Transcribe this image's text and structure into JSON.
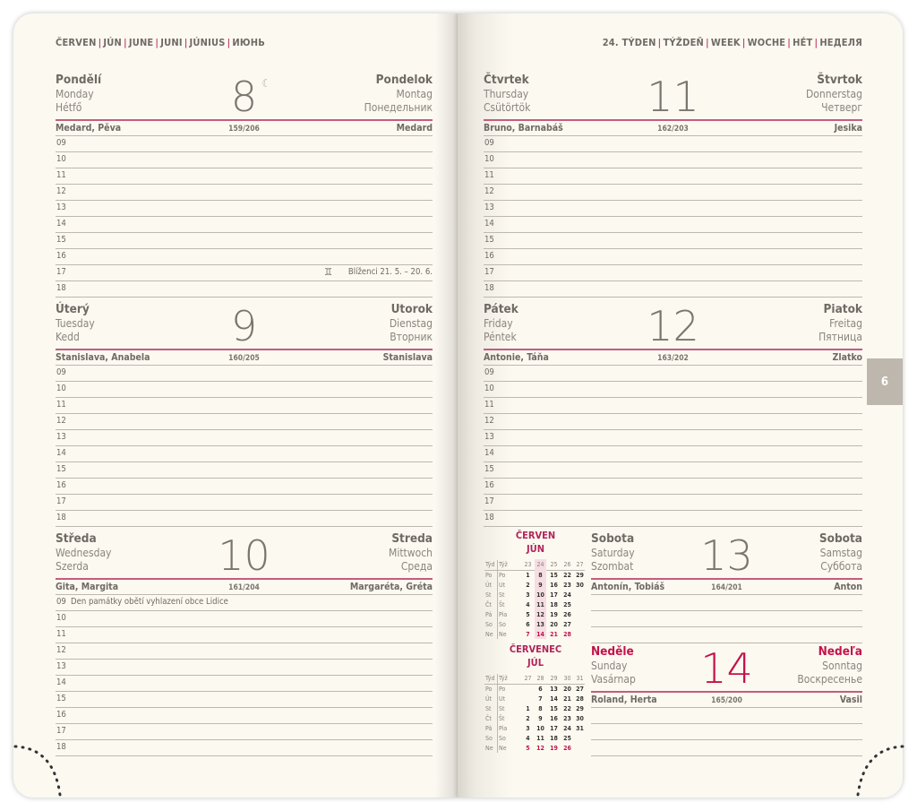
{
  "left_header": [
    "ČERVEN",
    "JÚN",
    "JUNE",
    "JUNI",
    "JÚNIUS",
    "ИЮНЬ"
  ],
  "right_header": [
    "24. TÝDEN",
    "TÝŽDEŇ",
    "WEEK",
    "WOCHE",
    "HÉT",
    "НЕДЕЛЯ"
  ],
  "colors": {
    "accent": "#c45c7e",
    "sunday": "#c2124b",
    "paper": "#fcf9f1",
    "text": "#6f6a64",
    "tab": "#bdb7ad"
  },
  "month_tab": "6",
  "hours": [
    "09",
    "10",
    "11",
    "12",
    "13",
    "14",
    "15",
    "16",
    "17",
    "18"
  ],
  "days": [
    {
      "cz": "Pondělí",
      "en": "Monday",
      "hu": "Hétfő",
      "sk": "Pondelok",
      "de": "Montag",
      "ru": "Понедельник",
      "num": "8",
      "moon_icon": "crescent-moon-icon",
      "moon": "☾",
      "names_cz": "Medard, Pěva",
      "count": "159/206",
      "names_sk": "Medard",
      "notes": {
        "17": {
          "icon": "gemini-icon",
          "glyph": "♊",
          "text": "Blíženci 21. 5. – 20. 6."
        }
      }
    },
    {
      "cz": "Úterý",
      "en": "Tuesday",
      "hu": "Kedd",
      "sk": "Utorok",
      "de": "Dienstag",
      "ru": "Вторник",
      "num": "9",
      "names_cz": "Stanislava, Anabela",
      "count": "160/205",
      "names_sk": "Stanislava"
    },
    {
      "cz": "Středa",
      "en": "Wednesday",
      "hu": "Szerda",
      "sk": "Streda",
      "de": "Mittwoch",
      "ru": "Среда",
      "num": "10",
      "names_cz": "Gita, Margita",
      "count": "161/204",
      "names_sk": "Margaréta, Gréta",
      "notes": {
        "09": {
          "text": "Den památky obětí vyhlazení obce Lidice",
          "inline": true
        }
      }
    },
    {
      "cz": "Čtvrtek",
      "en": "Thursday",
      "hu": "Csütörtök",
      "sk": "Štvrtok",
      "de": "Donnerstag",
      "ru": "Четверг",
      "num": "11",
      "names_cz": "Bruno, Barnabáš",
      "count": "162/203",
      "names_sk": "Jesika"
    },
    {
      "cz": "Pátek",
      "en": "Friday",
      "hu": "Péntek",
      "sk": "Piatok",
      "de": "Freitag",
      "ru": "Пятница",
      "num": "12",
      "names_cz": "Antonie, Táňa",
      "count": "163/202",
      "names_sk": "Zlatko"
    },
    {
      "cz": "Sobota",
      "en": "Saturday",
      "hu": "Szombat",
      "sk": "Sobota",
      "de": "Samstag",
      "ru": "Суббота",
      "num": "13",
      "names_cz": "Antonín, Tobiáš",
      "count": "164/201",
      "names_sk": "Anton"
    },
    {
      "cz": "Neděle",
      "en": "Sunday",
      "hu": "Vasárnap",
      "sk": "Nedeľa",
      "de": "Sonntag",
      "ru": "Воскресенье",
      "num": "14",
      "names_cz": "Roland, Herta",
      "count": "165/200",
      "names_sk": "Vasil",
      "sunday": true
    }
  ],
  "mini_calendars": [
    {
      "title_cz": "ČERVEN",
      "title_sk": "JÚN",
      "head_cz": "Týd",
      "head_sk": "Týž",
      "weeks": [
        "23",
        "24",
        "25",
        "26",
        "27"
      ],
      "highlight_week": "24",
      "rows": [
        [
          "Po",
          "Po",
          "1",
          "8",
          "15",
          "22",
          "29"
        ],
        [
          "Út",
          "Ut",
          "2",
          "9",
          "16",
          "23",
          "30"
        ],
        [
          "St",
          "St",
          "3",
          "10",
          "17",
          "24",
          ""
        ],
        [
          "Čt",
          "Št",
          "4",
          "11",
          "18",
          "25",
          ""
        ],
        [
          "Pá",
          "Pia",
          "5",
          "12",
          "19",
          "26",
          ""
        ],
        [
          "So",
          "So",
          "6",
          "13",
          "20",
          "27",
          ""
        ],
        [
          "Ne",
          "Ne",
          "7",
          "14",
          "21",
          "28",
          ""
        ]
      ]
    },
    {
      "title_cz": "ČERVENEC",
      "title_sk": "JÚL",
      "head_cz": "Týd",
      "head_sk": "Týž",
      "weeks": [
        "27",
        "28",
        "29",
        "30",
        "31"
      ],
      "rows": [
        [
          "Po",
          "Po",
          "",
          "6",
          "13",
          "20",
          "27"
        ],
        [
          "Út",
          "Ut",
          "",
          "7",
          "14",
          "21",
          "28"
        ],
        [
          "St",
          "St",
          "1",
          "8",
          "15",
          "22",
          "29"
        ],
        [
          "Čt",
          "Št",
          "2",
          "9",
          "16",
          "23",
          "30"
        ],
        [
          "Pá",
          "Pia",
          "3",
          "10",
          "17",
          "24",
          "31"
        ],
        [
          "So",
          "So",
          "4",
          "11",
          "18",
          "25",
          ""
        ],
        [
          "Ne",
          "Ne",
          "5",
          "12",
          "19",
          "26",
          ""
        ]
      ]
    }
  ]
}
